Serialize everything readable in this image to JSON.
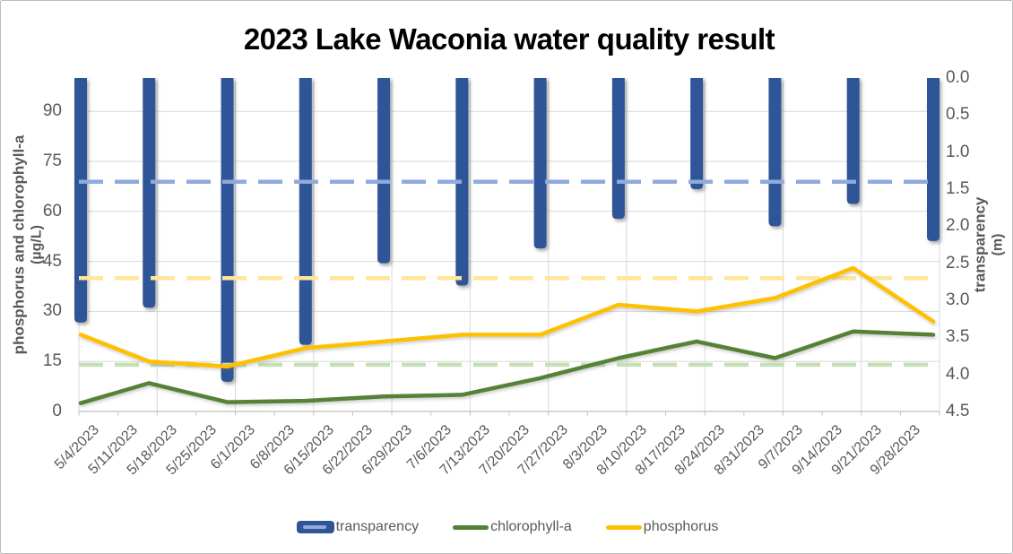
{
  "window": {
    "background": "#FFFFFF",
    "border_color": "#BCBCBC"
  },
  "chart_data": {
    "type": "bar",
    "subtype": "combo-bar-line",
    "title": "2023 Lake Waconia water quality result",
    "x_axis": {
      "labels": [
        "5/4/2023",
        "5/11/2023",
        "5/18/2023",
        "5/25/2023",
        "6/1/2023",
        "6/8/2023",
        "6/15/2023",
        "6/22/2023",
        "6/29/2023",
        "7/6/2023",
        "7/13/2023",
        "7/20/2023",
        "7/27/2023",
        "8/3/2023",
        "8/10/2023",
        "8/17/2023",
        "8/24/2023",
        "8/31/2023",
        "9/7/2023",
        "9/14/2023",
        "9/21/2023",
        "9/28/2023"
      ]
    },
    "left_axis": {
      "title": "phosphorus and chlorophyll-a",
      "unit": "(µg/L)",
      "ticks": [
        "0",
        "15",
        "30",
        "45",
        "60",
        "75",
        "90"
      ],
      "tick_values": [
        0,
        15,
        30,
        45,
        60,
        75,
        90
      ],
      "range": [
        0,
        100
      ],
      "grid": true
    },
    "right_axis": {
      "title": "transparency",
      "unit": "(m)",
      "ticks": [
        "0.0",
        "0.5",
        "1.0",
        "1.5",
        "2.0",
        "2.5",
        "3.0",
        "3.5",
        "4.0",
        "4.5"
      ],
      "tick_values": [
        0,
        0.5,
        1.0,
        1.5,
        2.0,
        2.5,
        3.0,
        3.5,
        4.0,
        4.5
      ],
      "range": [
        0,
        4.5
      ],
      "direction": "inverted"
    },
    "sample_dates": [
      "5/4/2023",
      "5/18/2023",
      "6/1/2023",
      "6/15/2023",
      "6/29/2023",
      "7/13/2023",
      "7/27/2023",
      "8/10/2023",
      "8/24/2023",
      "9/7/2023",
      "9/21/2023",
      "9/28/2023"
    ],
    "series": [
      {
        "name": "transparency",
        "type": "bar",
        "axis": "right",
        "unit": "m",
        "color": "#2F5597",
        "values": [
          3.3,
          3.1,
          4.1,
          3.6,
          2.5,
          2.8,
          2.3,
          1.9,
          1.5,
          2.0,
          1.7,
          2.2
        ]
      },
      {
        "name": "chlorophyll-a",
        "type": "line",
        "axis": "left",
        "unit": "µg/L",
        "color": "#548235",
        "values": [
          2.5,
          8.5,
          2.8,
          3.2,
          4.5,
          5,
          10,
          16,
          21,
          16,
          24,
          23
        ]
      },
      {
        "name": "phosphorus",
        "type": "line",
        "axis": "left",
        "unit": "µg/L",
        "color": "#FFC000",
        "values": [
          23,
          15,
          13.5,
          19,
          21,
          23,
          23,
          32,
          30,
          34,
          43,
          27
        ]
      }
    ],
    "reference_lines": [
      {
        "name": "transparency-standard",
        "axis": "right",
        "value": 1.4,
        "color": "#8FAADC",
        "style": "dashed"
      },
      {
        "name": "phosphorus-standard",
        "axis": "left",
        "value": 40,
        "color": "#FFE699",
        "style": "dashed"
      },
      {
        "name": "chlorophyll-a-standard",
        "axis": "left",
        "value": 14,
        "color": "#C5E0B4",
        "style": "dashed"
      }
    ],
    "legend": [
      {
        "label": "transparency",
        "swatch": "bar",
        "color": "#2F5597",
        "inner_color": "#8FAADC"
      },
      {
        "label": "chlorophyll-a",
        "swatch": "line",
        "color": "#548235"
      },
      {
        "label": "phosphorus",
        "swatch": "line",
        "color": "#FFC000"
      }
    ],
    "grid_colors": {
      "gridline": "#D9D9D9",
      "axis_line": "#BFBFBF"
    },
    "legend_position": "bottom",
    "layout_hints": {
      "bars_hang_from_top": true,
      "x_labels_rotated_45": true
    }
  }
}
